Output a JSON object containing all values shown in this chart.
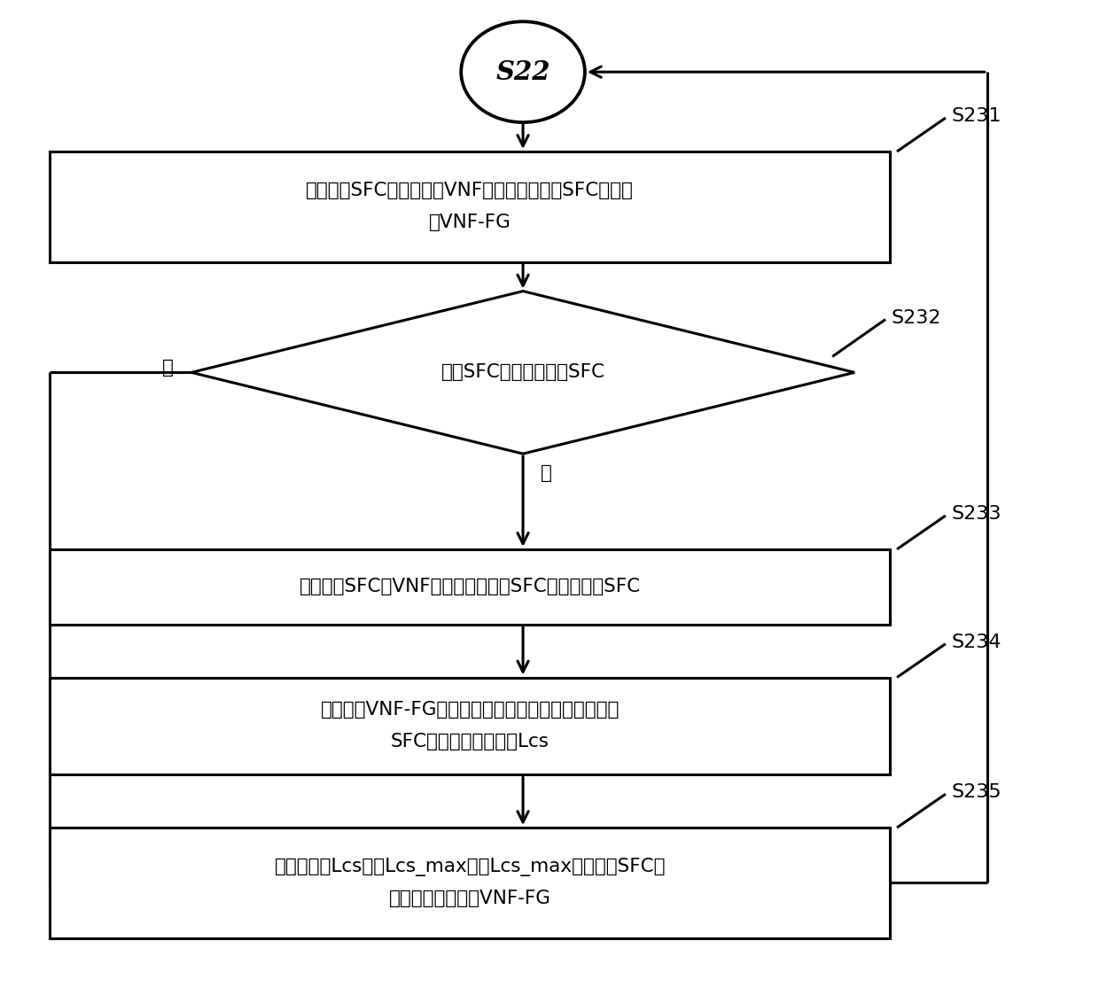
{
  "bg_color": "#ffffff",
  "line_color": "#000000",
  "text_color": "#000000",
  "circle_label": "S22",
  "box1_line1": "选取一组SFC，取出其中VNF节点最多的一条SFC作为初",
  "box1_line2": "始VNF-FG",
  "box1_tag": "S231",
  "diamond_label": "该组SFC中还存在剩余SFC",
  "diamond_tag": "S232",
  "no_label": "否",
  "yes_label": "是",
  "box2_label": "取出该组SFC中VNF节点最多的一条SFC作为待整合SFC",
  "box2_tag": "S233",
  "box3_line1": "遍历当前VNF-FG的所有路径，并计算各路径与待整合",
  "box3_line2": "SFC的最长公共子序列Lcs",
  "box3_tag": "S234",
  "box4_line1": "选取最长的Lcs记为Lcs_max，将Lcs_max与待整合SFC进",
  "box4_line2": "行整合，形成新的VNF-FG",
  "box4_tag": "S235",
  "figsize": [
    12.4,
    11.32
  ],
  "dpi": 100
}
